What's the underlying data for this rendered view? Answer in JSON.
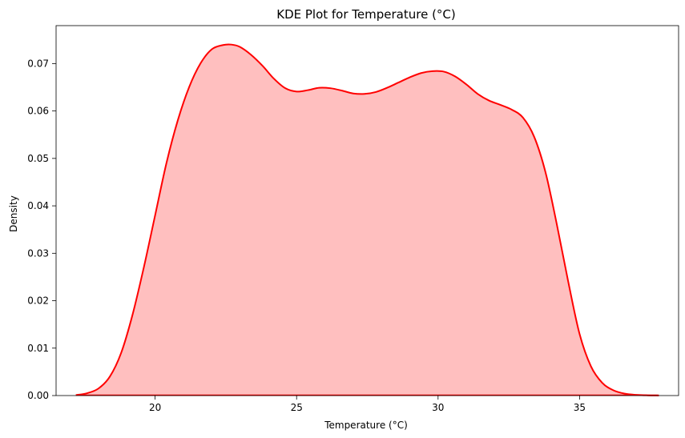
{
  "chart_data": {
    "type": "area",
    "title": "KDE Plot for Temperature (°C)",
    "xlabel": "Temperature (°C)",
    "ylabel": "Density",
    "xlim": [
      16.5,
      38.5
    ],
    "ylim": [
      0,
      0.078
    ],
    "xticks": [
      20,
      25,
      30,
      35
    ],
    "yticks": [
      0.0,
      0.01,
      0.02,
      0.03,
      0.04,
      0.05,
      0.06,
      0.07
    ],
    "ytick_labels": [
      "0.00",
      "0.01",
      "0.02",
      "0.03",
      "0.04",
      "0.05",
      "0.06",
      "0.07"
    ],
    "grid": false,
    "colors": {
      "line": "#ff0000",
      "fill": "#ffbfbf"
    },
    "series": [
      {
        "x": [
          17.2,
          17.6,
          18.0,
          18.4,
          18.8,
          19.2,
          19.6,
          20.0,
          20.4,
          20.8,
          21.2,
          21.6,
          22.0,
          22.4,
          22.7,
          23.0,
          23.4,
          23.8,
          24.2,
          24.6,
          25.0,
          25.4,
          25.8,
          26.2,
          26.6,
          27.0,
          27.4,
          27.8,
          28.2,
          28.6,
          29.0,
          29.4,
          29.8,
          30.2,
          30.6,
          31.0,
          31.4,
          31.8,
          32.2,
          32.6,
          33.0,
          33.4,
          33.8,
          34.2,
          34.6,
          35.0,
          35.4,
          35.8,
          36.2,
          36.6,
          37.0,
          37.4,
          37.8
        ],
        "y": [
          0.0001,
          0.0005,
          0.0015,
          0.004,
          0.009,
          0.017,
          0.027,
          0.038,
          0.049,
          0.058,
          0.065,
          0.07,
          0.073,
          0.0739,
          0.074,
          0.0735,
          0.0718,
          0.0695,
          0.0668,
          0.0648,
          0.0641,
          0.0644,
          0.0649,
          0.0648,
          0.0643,
          0.0637,
          0.0636,
          0.064,
          0.0649,
          0.066,
          0.0671,
          0.068,
          0.0684,
          0.0683,
          0.0673,
          0.0656,
          0.0636,
          0.0622,
          0.0613,
          0.0603,
          0.0586,
          0.0545,
          0.047,
          0.036,
          0.024,
          0.013,
          0.0062,
          0.0027,
          0.0011,
          0.0004,
          0.00015,
          5e-05,
          1e-05
        ]
      }
    ]
  }
}
